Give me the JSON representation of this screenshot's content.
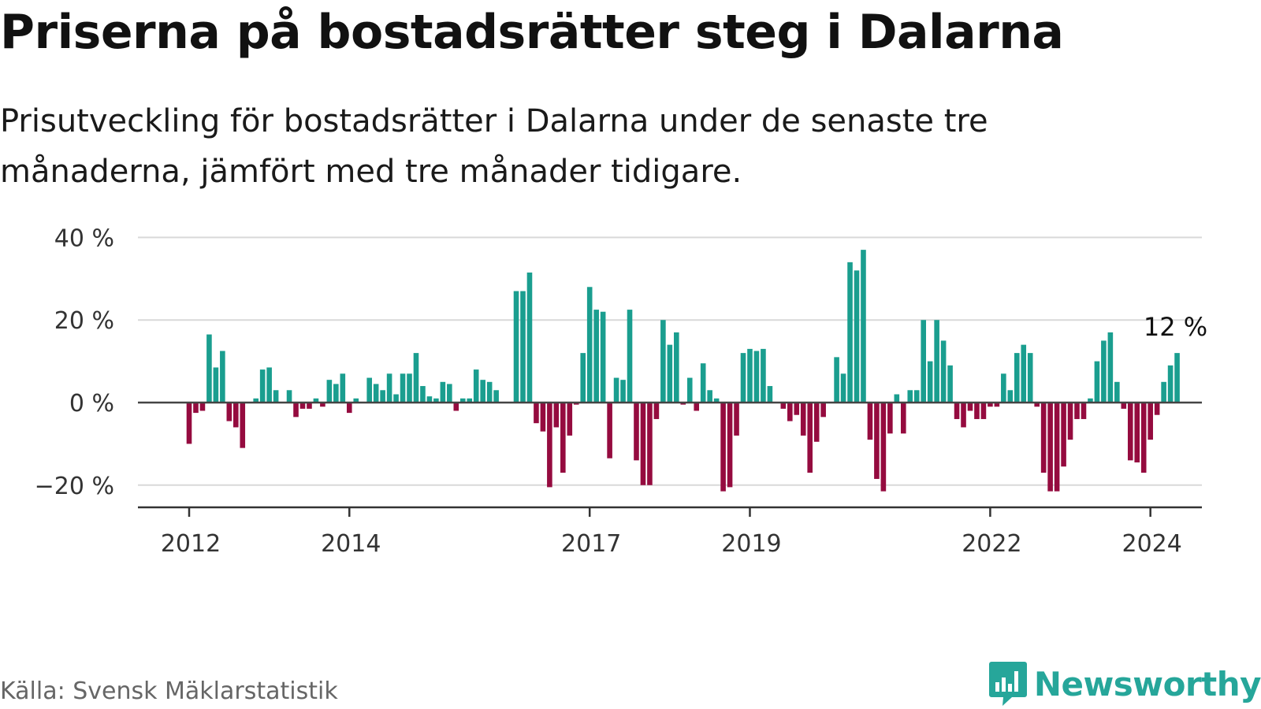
{
  "title": "Priserna på bostadsrätter steg i Dalarna",
  "subtitle": "Prisutveckling för bostadsrätter i Dalarna under de senaste tre månaderna, jämfört med tre månader tidigare.",
  "source": "Källa: Svensk Mäklarstatistik",
  "brand": "Newsworthy",
  "colors": {
    "positive": "#1a9e8f",
    "negative": "#950b3f",
    "grid": "#d9d9d9",
    "zero": "#444444",
    "brand": "#26a69a"
  },
  "chart_data": {
    "type": "bar",
    "title": "Priserna på bostadsrätter steg i Dalarna",
    "xlabel": "",
    "ylabel": "",
    "ylim": [
      -25,
      40
    ],
    "yticks": [
      {
        "value": 40,
        "label": "40 %"
      },
      {
        "value": 20,
        "label": "20 %"
      },
      {
        "value": 0,
        "label": "0 %"
      },
      {
        "value": -20,
        "label": "−20 %"
      }
    ],
    "xticks": [
      {
        "index": 0,
        "label": "2012"
      },
      {
        "index": 24,
        "label": "2014"
      },
      {
        "index": 60,
        "label": "2017"
      },
      {
        "index": 84,
        "label": "2019"
      },
      {
        "index": 120,
        "label": "2022"
      },
      {
        "index": 144,
        "label": "2024"
      }
    ],
    "last_label": "12 %",
    "values": [
      -10,
      -2.5,
      -2,
      16.5,
      8.5,
      12.5,
      -4.5,
      -6,
      -11,
      0,
      1,
      8,
      8.5,
      3,
      0,
      3,
      -3.5,
      -1.5,
      -1.5,
      1,
      -1,
      5.5,
      4.5,
      7,
      -2.5,
      1,
      0,
      6,
      4.5,
      3,
      7,
      2,
      7,
      7,
      12,
      4,
      1.5,
      1,
      5,
      4.5,
      -2,
      1,
      1,
      8,
      5.5,
      5,
      3,
      0,
      0,
      27,
      27,
      31.5,
      -5,
      -7,
      -20.5,
      -6,
      -17,
      -8,
      -0.5,
      12,
      28,
      22.5,
      22,
      -13.5,
      6,
      5.5,
      22.5,
      -14,
      -20,
      -20,
      -4,
      20,
      14,
      17,
      -0.5,
      6,
      -2,
      9.5,
      3,
      1,
      -21.5,
      -20.5,
      -8,
      12,
      13,
      12.5,
      13,
      4,
      0,
      -1.5,
      -4.5,
      -3,
      -8,
      -17,
      -9.5,
      -3.5,
      0,
      11,
      7,
      34,
      32,
      37,
      -9,
      -18.5,
      -21.5,
      -7.5,
      2,
      -7.5,
      3,
      3,
      20,
      10,
      20,
      15,
      9,
      -4,
      -6,
      -2,
      -4,
      -4,
      -1,
      -1,
      7,
      3,
      12,
      14,
      12,
      -1,
      -17,
      -21.5,
      -21.5,
      -15.5,
      -9,
      -4,
      -4,
      1,
      10,
      15,
      17,
      5,
      -1.5,
      -14,
      -14.5,
      -17,
      -9,
      -3,
      5,
      9,
      12
    ]
  }
}
